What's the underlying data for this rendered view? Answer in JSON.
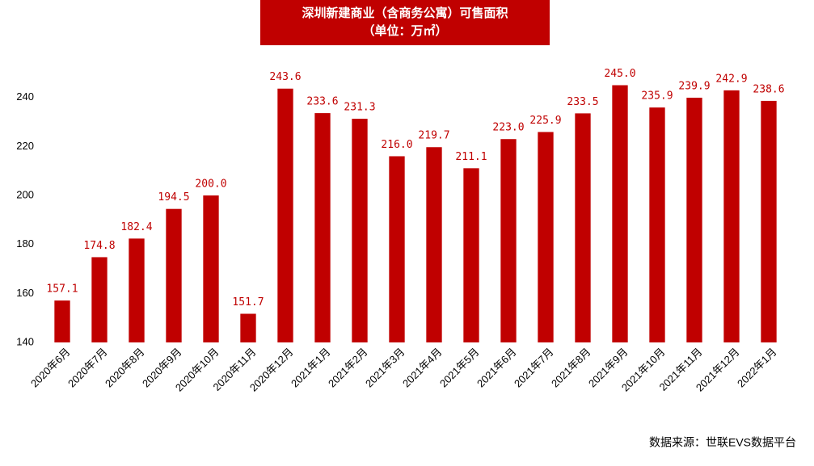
{
  "chart_data": {
    "type": "bar",
    "title": "深圳新建商业（含商务公寓）可售面积",
    "subtitle": "（单位：万㎡）",
    "source": "数据来源：世联EVS数据平台",
    "categories": [
      "2020年6月",
      "2020年7月",
      "2020年8月",
      "2020年9月",
      "2020年10月",
      "2020年11月",
      "2020年12月",
      "2021年1月",
      "2021年2月",
      "2021年3月",
      "2021年4月",
      "2021年5月",
      "2021年6月",
      "2021年7月",
      "2021年8月",
      "2021年9月",
      "2021年10月",
      "2021年11月",
      "2021年12月",
      "2022年1月"
    ],
    "values": [
      157.1,
      174.8,
      182.4,
      194.5,
      200.0,
      151.7,
      243.6,
      233.6,
      231.3,
      216.0,
      219.7,
      211.1,
      223.0,
      225.9,
      233.5,
      245.0,
      235.9,
      239.9,
      242.9,
      238.6
    ],
    "value_labels": [
      "157.1",
      "174.8",
      "182.4",
      "194.5",
      "200.0",
      "151.7",
      "243.6",
      "233.6",
      "231.3",
      "216.0",
      "219.7",
      "211.1",
      "223.0",
      "225.9",
      "233.5",
      "245.0",
      "235.9",
      "239.9",
      "242.9",
      "238.6"
    ],
    "color": "#c00000",
    "ylim": [
      140,
      260
    ],
    "yticks": [
      140,
      160,
      180,
      200,
      220,
      240
    ],
    "grid": false
  }
}
